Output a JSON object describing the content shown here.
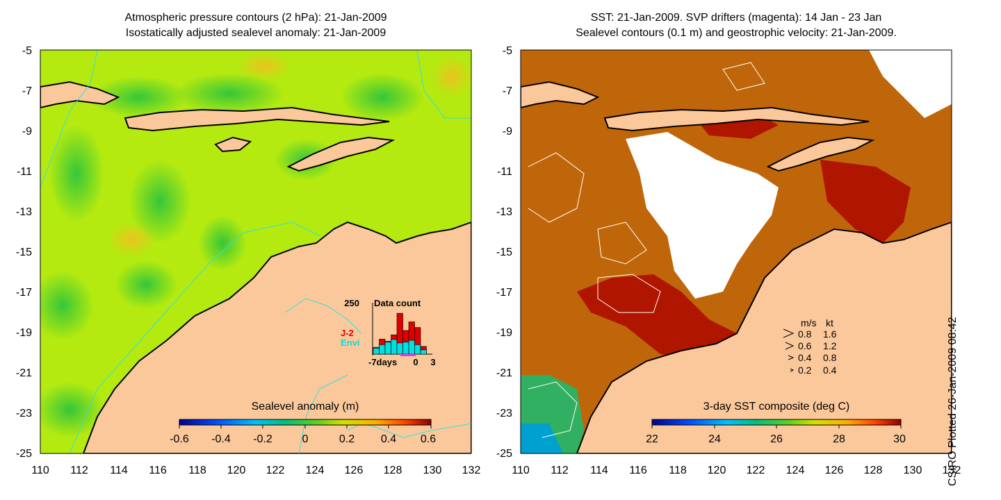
{
  "left_panel": {
    "title_line1": "Atmospheric pressure contours (2 hPa): 21-Jan-2009",
    "title_line2": "Isostatically adjusted sealevel anomaly: 21-Jan-2009",
    "y_ticks": [
      "-5",
      "-7",
      "-9",
      "-11",
      "-13",
      "-15",
      "-17",
      "-19",
      "-21",
      "-23",
      "-25"
    ],
    "x_ticks": [
      "110",
      "112",
      "114",
      "116",
      "118",
      "120",
      "122",
      "124",
      "126",
      "128",
      "130",
      "132"
    ],
    "colorbar": {
      "title": "Sealevel anomaly (m)",
      "ticks": [
        "-0.6",
        "-0.4",
        "-0.2",
        "0",
        "0.2",
        "0.4",
        "0.6"
      ]
    },
    "data_count": {
      "title": "Data count",
      "max_label": "250",
      "legend_j2": "J-2",
      "legend_envi": "Envi",
      "x_start": "-7days",
      "x_zero": "0",
      "x_end": "3",
      "j2_color": "#e00000",
      "envi_color": "#00e0e0",
      "bars_j2": [
        0.16,
        0.35,
        0.3,
        0.45,
        0.95,
        0.55,
        0.75,
        0.62,
        0.18
      ],
      "bars_envi": [
        0.14,
        0.22,
        0.28,
        0.34,
        0.26,
        0.28,
        0.32,
        0.22,
        0.1
      ]
    }
  },
  "right_panel": {
    "title_line1": "SST: 21-Jan-2009. SVP drifters (magenta): 14 Jan - 23 Jan",
    "title_line2": "Sealevel contours (0.1 m) and geostrophic velocity: 21-Jan-2009.",
    "y_ticks": [
      "-5",
      "-7",
      "-9",
      "-11",
      "-13",
      "-15",
      "-17",
      "-19",
      "-21",
      "-23",
      "-25"
    ],
    "x_ticks": [
      "110",
      "112",
      "114",
      "116",
      "118",
      "120",
      "122",
      "124",
      "126",
      "128",
      "130",
      "132"
    ],
    "colorbar": {
      "title": "3-day SST composite (deg C)",
      "ticks": [
        "22",
        "24",
        "26",
        "28",
        "30"
      ]
    },
    "velocity_legend": {
      "header_ms": "m/s",
      "header_kt": "kt",
      "rows": [
        {
          "ms": "0.8",
          "kt": "1.6"
        },
        {
          "ms": "0.6",
          "kt": "1.2"
        },
        {
          "ms": "0.4",
          "kt": "0.8"
        },
        {
          "ms": "0.2",
          "kt": "0.4"
        }
      ]
    }
  },
  "credit": "CSIRO Plotted 26-Jan-2009 08:42",
  "colors": {
    "land": "#fbc89c",
    "sla_background": "#b4ea10",
    "sst_background": "#c0660a",
    "sst_warm": "#b01500",
    "contour_cyan": "#30e0e0"
  }
}
